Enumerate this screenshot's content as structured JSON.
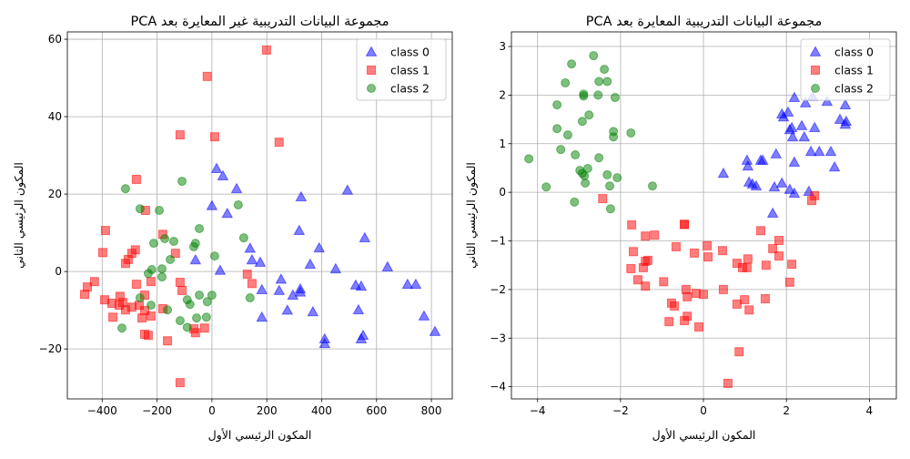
{
  "chart_data": [
    {
      "type": "scatter",
      "title": "مجموعة البيانات التدريبية غير المعايرة بعد PCA",
      "xlabel": "المكون الرئيسي الأول",
      "ylabel": "المكون الرئيسي الثاني",
      "xlim": [
        -527,
        876
      ],
      "ylim": [
        -32.9,
        61.9
      ],
      "xticks": [
        -400,
        -200,
        0,
        200,
        400,
        600,
        800
      ],
      "yticks": [
        -20,
        0,
        20,
        40,
        60
      ],
      "grid": true,
      "legend": "top-right",
      "series": [
        {
          "name": "class 0",
          "marker": "triangle",
          "color": "#0000ff",
          "points": [
            [
              17,
              26.6
            ],
            [
              40,
              24.7
            ],
            [
              90,
              21.4
            ],
            [
              0,
              17
            ],
            [
              56,
              15
            ],
            [
              139,
              6
            ],
            [
              146,
              3
            ],
            [
              176,
              2.4
            ],
            [
              -60,
              3
            ],
            [
              30,
              0.3
            ],
            [
              182,
              -4.7
            ],
            [
              325,
              19.3
            ],
            [
              318,
              10.6
            ],
            [
              391,
              6.1
            ],
            [
              358,
              1.9
            ],
            [
              451,
              0.7
            ],
            [
              494,
              21
            ],
            [
              252,
              -2
            ],
            [
              245,
              -4.9
            ],
            [
              295,
              -6.1
            ],
            [
              275,
              -10
            ],
            [
              322,
              -4.5
            ],
            [
              322,
              -5.3
            ],
            [
              368,
              -10.4
            ],
            [
              182,
              -11.8
            ],
            [
              411,
              -17.4
            ],
            [
              411,
              -18.6
            ],
            [
              524,
              -3.5
            ],
            [
              534,
              -9.9
            ],
            [
              544,
              -3.8
            ],
            [
              544,
              -17.4
            ],
            [
              551,
              -16.5
            ],
            [
              557,
              8.7
            ],
            [
              640,
              1.2
            ],
            [
              713,
              -3.3
            ],
            [
              743,
              -3.3
            ],
            [
              773,
              -11.5
            ],
            [
              813,
              -15.5
            ]
          ]
        },
        {
          "name": "class 1",
          "marker": "square",
          "color": "#ff0000",
          "points": [
            [
              199,
              57.2
            ],
            [
              -17,
              50.4
            ],
            [
              -116,
              35.3
            ],
            [
              10,
              34.8
            ],
            [
              245,
              33.4
            ],
            [
              -275,
              23.8
            ],
            [
              -242,
              15.8
            ],
            [
              -388,
              10.6
            ],
            [
              -179,
              9.6
            ],
            [
              -279,
              5.6
            ],
            [
              -292,
              4.7
            ],
            [
              -398,
              4.9
            ],
            [
              -305,
              3.1
            ],
            [
              -315,
              2.1
            ],
            [
              -133,
              4.7
            ],
            [
              129,
              -0.7
            ],
            [
              146,
              -3.1
            ],
            [
              -428,
              -2.6
            ],
            [
              -454,
              -4
            ],
            [
              -464,
              -5.9
            ],
            [
              -275,
              -3.3
            ],
            [
              -222,
              -2.6
            ],
            [
              -116,
              -2.8
            ],
            [
              -109,
              -4.9
            ],
            [
              -245,
              -6.1
            ],
            [
              -391,
              -7.3
            ],
            [
              -365,
              -8.2
            ],
            [
              -335,
              -6.4
            ],
            [
              -325,
              -8
            ],
            [
              -338,
              -8.7
            ],
            [
              -292,
              -9.2
            ],
            [
              -265,
              -8.7
            ],
            [
              -315,
              -9.9
            ],
            [
              -245,
              -10.1
            ],
            [
              -222,
              -11.5
            ],
            [
              -255,
              -12
            ],
            [
              -361,
              -11.8
            ],
            [
              -179,
              -9.6
            ],
            [
              -245,
              -16.2
            ],
            [
              -232,
              -16.5
            ],
            [
              -162,
              -17.9
            ],
            [
              -66,
              -14.8
            ],
            [
              -60,
              -15.8
            ],
            [
              -27,
              -14.6
            ],
            [
              -116,
              -28.7
            ]
          ]
        },
        {
          "name": "class 2",
          "marker": "circle",
          "color": "#008000",
          "points": [
            [
              -315,
              21.4
            ],
            [
              -109,
              23.3
            ],
            [
              -262,
              16.2
            ],
            [
              -192,
              15.8
            ],
            [
              96,
              17.2
            ],
            [
              -46,
              11.1
            ],
            [
              116,
              8.7
            ],
            [
              -212,
              7.3
            ],
            [
              -172,
              8.5
            ],
            [
              -139,
              7.8
            ],
            [
              -60,
              7.3
            ],
            [
              -66,
              6.4
            ],
            [
              -152,
              3.1
            ],
            [
              10,
              4
            ],
            [
              -219,
              0.5
            ],
            [
              -232,
              -0.5
            ],
            [
              -182,
              0.7
            ],
            [
              -182,
              -1.4
            ],
            [
              -262,
              -6.8
            ],
            [
              -222,
              -8.7
            ],
            [
              -162,
              -9.9
            ],
            [
              -90,
              -7.3
            ],
            [
              -80,
              -8.5
            ],
            [
              -46,
              -6.1
            ],
            [
              0,
              -6.1
            ],
            [
              -17,
              -7.8
            ],
            [
              139,
              -6.8
            ],
            [
              -116,
              -12.7
            ],
            [
              -56,
              -12
            ],
            [
              -20,
              -11.8
            ],
            [
              -90,
              -14.4
            ],
            [
              -328,
              -14.6
            ]
          ]
        }
      ]
    },
    {
      "type": "scatter",
      "title": "مجموعة البيانات التدريبية المعايرة بعد PCA",
      "xlabel": "المكون الرئيسي الأول",
      "ylabel": "المكون الرئيسي الثاني",
      "xlim": [
        -4.63,
        4.65
      ],
      "ylim": [
        -4.25,
        3.3
      ],
      "xticks": [
        -4,
        -2,
        0,
        2,
        4
      ],
      "yticks": [
        -4,
        -3,
        -2,
        -1,
        0,
        1,
        2,
        3
      ],
      "grid": true,
      "legend": "top-right",
      "series": [
        {
          "name": "class 0",
          "marker": "triangle",
          "color": "#0000ff",
          "points": [
            [
              0.48,
              0.39
            ],
            [
              1.05,
              0.66
            ],
            [
              1.07,
              0.54
            ],
            [
              1.1,
              0.21
            ],
            [
              1.18,
              0.17
            ],
            [
              1.27,
              0.13
            ],
            [
              1.38,
              0.66
            ],
            [
              1.43,
              0.66
            ],
            [
              1.67,
              -0.43
            ],
            [
              1.71,
              0.11
            ],
            [
              1.75,
              0.79
            ],
            [
              1.89,
              1.61
            ],
            [
              1.93,
              1.55
            ],
            [
              1.89,
              0.19
            ],
            [
              2.04,
              1.65
            ],
            [
              2.08,
              1.29
            ],
            [
              2.13,
              1.33
            ],
            [
              2.08,
              0.06
            ],
            [
              2.15,
              1.14
            ],
            [
              2.19,
              1.95
            ],
            [
              2.19,
              0.62
            ],
            [
              2.19,
              -0.02
            ],
            [
              2.37,
              1.37
            ],
            [
              2.43,
              1.14
            ],
            [
              2.46,
              1.84
            ],
            [
              2.54,
              0.02
            ],
            [
              2.59,
              0.84
            ],
            [
              2.63,
              1.97
            ],
            [
              2.68,
              1.33
            ],
            [
              2.79,
              0.84
            ],
            [
              2.98,
              1.87
            ],
            [
              3.07,
              0.84
            ],
            [
              3.16,
              0.52
            ],
            [
              3.29,
              1.5
            ],
            [
              3.42,
              1.4
            ],
            [
              3.44,
              1.46
            ],
            [
              3.42,
              1.8
            ]
          ]
        },
        {
          "name": "class 1",
          "marker": "square",
          "color": "#ff0000",
          "points": [
            [
              -1.73,
              -0.67
            ],
            [
              -1.69,
              -1.22
            ],
            [
              -1.75,
              -1.57
            ],
            [
              -1.58,
              -1.8
            ],
            [
              -1.4,
              -0.9
            ],
            [
              -1.45,
              -1.55
            ],
            [
              -1.4,
              -1.42
            ],
            [
              -1.34,
              -1.4
            ],
            [
              -1.4,
              -1.93
            ],
            [
              -1.18,
              -0.88
            ],
            [
              -0.96,
              -1.84
            ],
            [
              -0.83,
              -2.66
            ],
            [
              -0.77,
              -2.28
            ],
            [
              -0.7,
              -2.34
            ],
            [
              -0.66,
              -1.12
            ],
            [
              -0.46,
              -2.64
            ],
            [
              -0.42,
              -2.0
            ],
            [
              -0.39,
              -2.55
            ],
            [
              -0.39,
              -2.15
            ],
            [
              -0.22,
              -1.25
            ],
            [
              -0.18,
              -2.08
            ],
            [
              -0.11,
              -2.77
            ],
            [
              0,
              -2.1
            ],
            [
              0.09,
              -1.1
            ],
            [
              0.11,
              -1.33
            ],
            [
              0.46,
              -1.2
            ],
            [
              0.48,
              -2.0
            ],
            [
              0.59,
              -3.93
            ],
            [
              0.81,
              -1.46
            ],
            [
              0.81,
              -2.3
            ],
            [
              0.86,
              -3.28
            ],
            [
              0.94,
              -1.55
            ],
            [
              0.99,
              -2.21
            ],
            [
              1.05,
              -1.55
            ],
            [
              1.07,
              -1.37
            ],
            [
              1.1,
              -2.42
            ],
            [
              1.38,
              -0.79
            ],
            [
              1.49,
              -2.19
            ],
            [
              1.51,
              -1.5
            ],
            [
              1.67,
              -1.16
            ],
            [
              1.82,
              -1.31
            ],
            [
              1.82,
              -0.99
            ],
            [
              2.08,
              -1.85
            ],
            [
              2.13,
              -1.48
            ],
            [
              2.61,
              -0.17
            ],
            [
              2.68,
              -0.07
            ],
            [
              -0.46,
              -0.66
            ],
            [
              -0.46,
              -0.66
            ],
            [
              -2.43,
              -0.13
            ]
          ]
        },
        {
          "name": "class 2",
          "marker": "circle",
          "color": "#008000",
          "points": [
            [
              -4.21,
              0.69
            ],
            [
              -3.79,
              0.11
            ],
            [
              -3.53,
              1.8
            ],
            [
              -3.53,
              1.31
            ],
            [
              -3.44,
              0.88
            ],
            [
              -3.33,
              2.25
            ],
            [
              -3.27,
              1.18
            ],
            [
              -3.18,
              2.64
            ],
            [
              -3.11,
              -0.2
            ],
            [
              -3.09,
              0.77
            ],
            [
              -2.98,
              0.45
            ],
            [
              -2.92,
              0.39
            ],
            [
              -2.89,
              2.02
            ],
            [
              -2.89,
              1.98
            ],
            [
              -2.92,
              1.46
            ],
            [
              -2.87,
              0.34
            ],
            [
              -2.85,
              0.19
            ],
            [
              -2.79,
              0.49
            ],
            [
              -2.76,
              1.59
            ],
            [
              -2.65,
              2.81
            ],
            [
              -2.52,
              2.28
            ],
            [
              -2.54,
              2.0
            ],
            [
              -2.52,
              0.71
            ],
            [
              -2.39,
              2.53
            ],
            [
              -2.32,
              2.28
            ],
            [
              -2.32,
              0.36
            ],
            [
              -2.26,
              0.13
            ],
            [
              -2.24,
              -0.34
            ],
            [
              -2.17,
              1.25
            ],
            [
              -2.17,
              1.14
            ],
            [
              -2.13,
              1.95
            ],
            [
              -2.08,
              0.3
            ],
            [
              -1.75,
              1.22
            ],
            [
              -1.23,
              0.13
            ]
          ]
        }
      ]
    }
  ]
}
